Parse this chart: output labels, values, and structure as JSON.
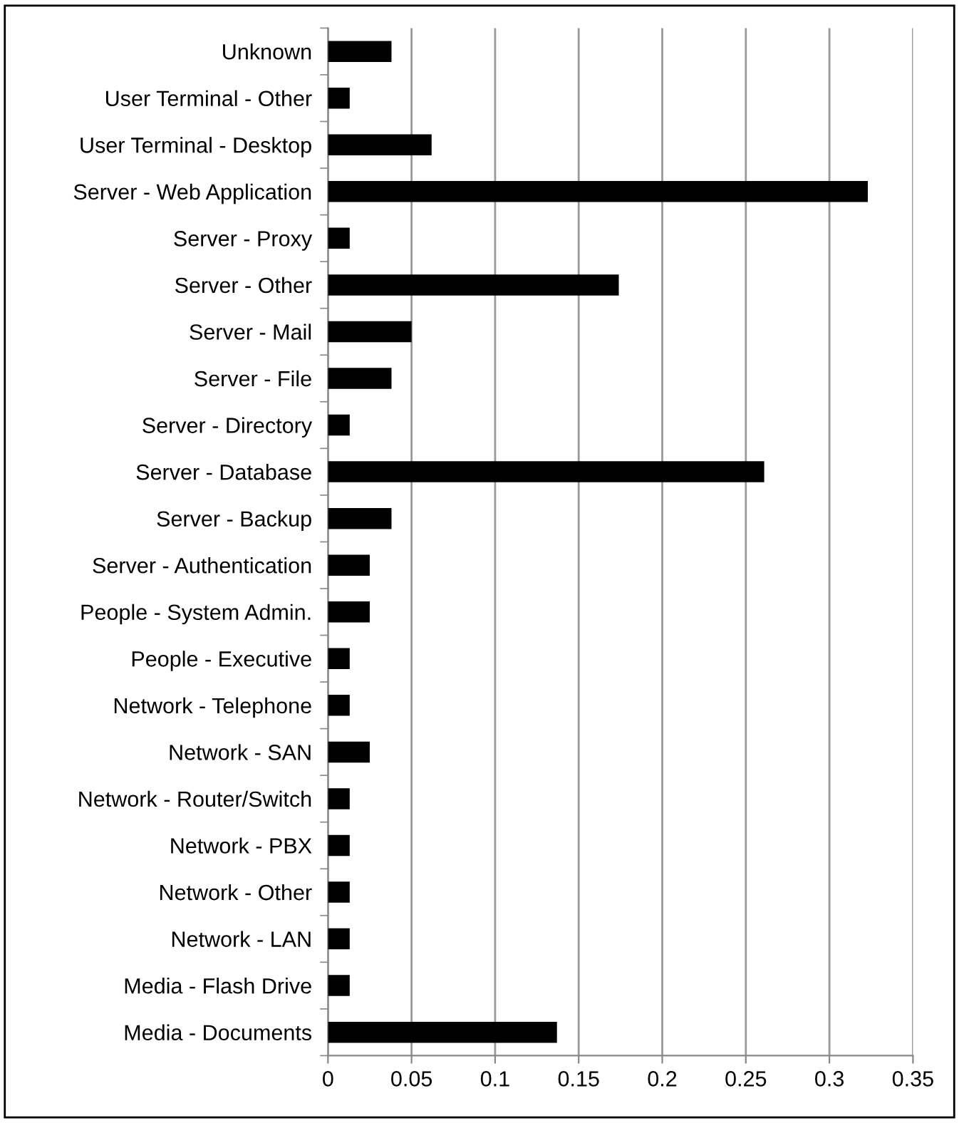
{
  "chart_data": {
    "type": "bar",
    "orientation": "horizontal",
    "categories": [
      "Unknown",
      "User Terminal - Other",
      "User Terminal - Desktop",
      "Server - Web Application",
      "Server - Proxy",
      "Server - Other",
      "Server - Mail",
      "Server - File",
      "Server - Directory",
      "Server - Database",
      "Server - Backup",
      "Server - Authentication",
      "People - System Admin.",
      "People - Executive",
      "Network - Telephone",
      "Network - SAN",
      "Network - Router/Switch",
      "Network - PBX",
      "Network - Other",
      "Network - LAN",
      "Media - Flash Drive",
      "Media - Documents"
    ],
    "values": [
      0.038,
      0.013,
      0.062,
      0.323,
      0.013,
      0.174,
      0.05,
      0.038,
      0.013,
      0.261,
      0.038,
      0.025,
      0.025,
      0.013,
      0.013,
      0.025,
      0.013,
      0.013,
      0.013,
      0.013,
      0.013,
      0.137
    ],
    "color": "#000000",
    "xlim": [
      0,
      0.35
    ],
    "xticks": [
      0,
      0.05,
      0.1,
      0.15,
      0.2,
      0.25,
      0.3,
      0.35
    ],
    "grid": "x",
    "legend": false
  }
}
